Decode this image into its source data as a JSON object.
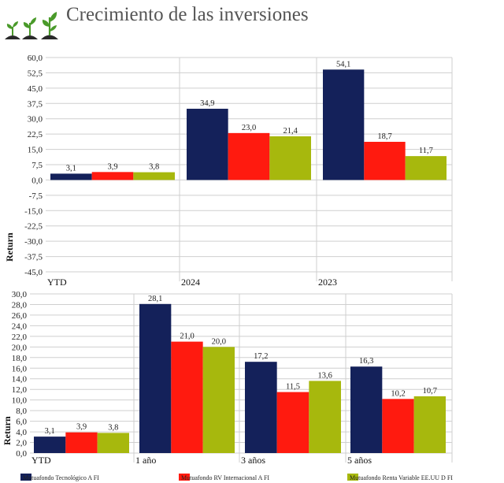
{
  "header": {
    "title": "Crecimiento de las inversiones",
    "logo_icon": "seedlings-icon"
  },
  "colors": {
    "series": [
      "#14215a",
      "#ff1a0f",
      "#a7b80d"
    ],
    "gridline": "#cfcfcf",
    "logo_green": "#4a9a2a",
    "logo_soil": "#2a2a2a"
  },
  "legend": {
    "position": "bottom",
    "items": [
      "Mutuafondo Tecnológico A FI",
      "Mutuafondo RV Internacional A FI",
      "Mutuafondo Renta Variable EE.UU D FI"
    ]
  },
  "chart_data": [
    {
      "type": "bar",
      "title": "",
      "ylabel": "Return",
      "xlabel": "",
      "ylim": [
        -45,
        60
      ],
      "ytick_step": 7.5,
      "grid": true,
      "categories": [
        "YTD",
        "2024",
        "2023"
      ],
      "series": [
        {
          "name": "Mutuafondo Tecnológico A FI",
          "values": [
            3.1,
            34.9,
            54.1
          ]
        },
        {
          "name": "Mutuafondo RV Internacional A FI",
          "values": [
            3.9,
            23.0,
            18.7
          ]
        },
        {
          "name": "Mutuafondo Renta Variable EE.UU D FI",
          "values": [
            3.8,
            21.4,
            11.7
          ]
        }
      ]
    },
    {
      "type": "bar",
      "title": "",
      "ylabel": "Return",
      "xlabel": "",
      "ylim": [
        0,
        30
      ],
      "ytick_step": 2,
      "grid": true,
      "categories": [
        "YTD",
        "1 año",
        "3 años",
        "5 años"
      ],
      "series": [
        {
          "name": "Mutuafondo Tecnológico A FI",
          "values": [
            3.1,
            28.1,
            17.2,
            16.3
          ]
        },
        {
          "name": "Mutuafondo RV Internacional A FI",
          "values": [
            3.9,
            21.0,
            11.5,
            10.2
          ]
        },
        {
          "name": "Mutuafondo Renta Variable EE.UU D FI",
          "values": [
            3.8,
            20.0,
            13.6,
            10.7
          ]
        }
      ]
    }
  ]
}
